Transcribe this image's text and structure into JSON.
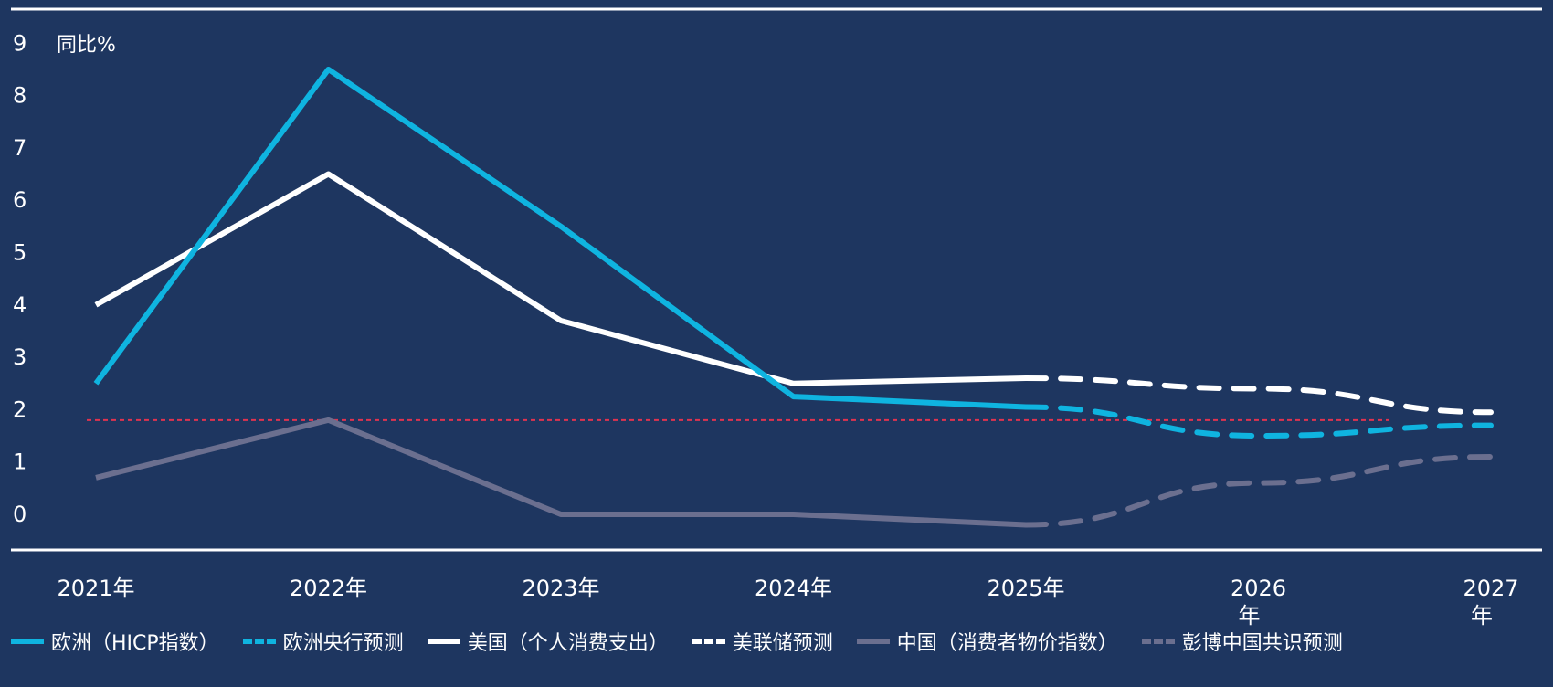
{
  "chart_data": {
    "type": "line",
    "ylabel": "同比%",
    "ylim": [
      -0.5,
      9
    ],
    "yticks": [
      "0",
      "1",
      "2",
      "3",
      "4",
      "5",
      "6",
      "7",
      "8",
      "9"
    ],
    "categories": [
      "2021年",
      "2022年",
      "2023年",
      "2024年",
      "2025年",
      "2026年",
      "2027年"
    ],
    "grid": false,
    "reference_line": {
      "value": 1.8,
      "color": "#e0334f",
      "style": "dotted"
    },
    "series": [
      {
        "name": "欧洲（HICP指数）",
        "color": "#0fb4e0",
        "dash": false,
        "values": [
          2.5,
          8.5,
          5.5,
          2.25,
          2.05,
          null,
          null
        ]
      },
      {
        "name": "欧洲央行预测",
        "color": "#0fb4e0",
        "dash": true,
        "values": [
          null,
          null,
          null,
          null,
          2.05,
          1.5,
          1.7
        ]
      },
      {
        "name": "美国（个人消费支出）",
        "color": "#ffffff",
        "dash": false,
        "values": [
          4.0,
          6.5,
          3.7,
          2.5,
          2.6,
          null,
          null
        ]
      },
      {
        "name": "美联储预测",
        "color": "#ffffff",
        "dash": true,
        "values": [
          null,
          null,
          null,
          null,
          2.6,
          2.4,
          1.95
        ]
      },
      {
        "name": "中国（消费者物价指数）",
        "color": "#6b6f8f",
        "dash": false,
        "values": [
          0.7,
          1.8,
          0.0,
          0.0,
          -0.2,
          null,
          null
        ]
      },
      {
        "name": "彭博中国共识预测",
        "color": "#6b6f8f",
        "dash": true,
        "values": [
          null,
          null,
          null,
          null,
          -0.2,
          0.6,
          1.1
        ]
      }
    ]
  }
}
